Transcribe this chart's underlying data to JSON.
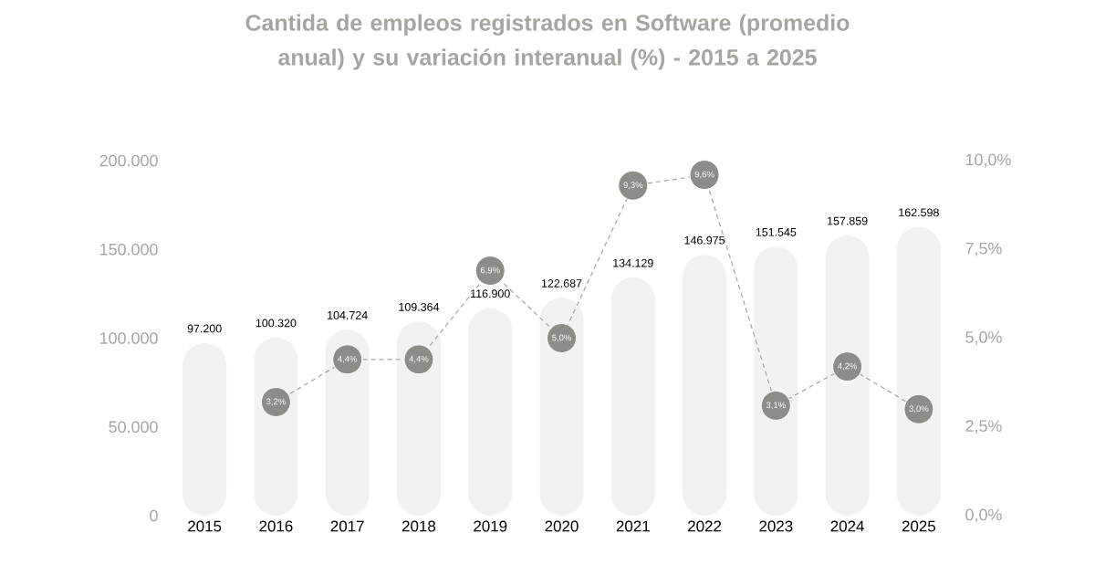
{
  "chart_data": {
    "type": "bar",
    "title": "Cantida de empleos registrados en Software (promedio anual) y su variación interanual (%) - 2015 a 2025",
    "categories": [
      "2015",
      "2016",
      "2017",
      "2018",
      "2019",
      "2020",
      "2021",
      "2022",
      "2023",
      "2024",
      "2025"
    ],
    "series": [
      {
        "color": "#f2f2f2",
        "values": [
          97200,
          100320,
          104724,
          109364,
          116900,
          122687,
          134129,
          146975,
          151545,
          157859,
          162598
        ],
        "value_labels": [
          "97.200",
          "100.320",
          "104.724",
          "109.364",
          "116.900",
          "122.687",
          "134.129",
          "146.975",
          "151.545",
          "157.859",
          "162.598"
        ]
      },
      {
        "type": "line",
        "axis": "y2",
        "color": "#8e8c88",
        "values": [
          null,
          3.2,
          4.4,
          4.4,
          6.9,
          5.0,
          9.3,
          9.6,
          3.1,
          4.2,
          3.0
        ],
        "value_labels": [
          null,
          "3,2%",
          "4,4%",
          "4,4%",
          "6,9%",
          "5,0%",
          "9,3%",
          "9,6%",
          "3,1%",
          "4,2%",
          "3,0%"
        ]
      }
    ],
    "marker": "circle",
    "line_style": "dashed",
    "ylim": [
      0,
      200000
    ],
    "yticks": [
      {
        "value": 0,
        "label": "0"
      },
      {
        "value": 50000,
        "label": "50.000"
      },
      {
        "value": 100000,
        "label": "100.000"
      },
      {
        "value": 150000,
        "label": "150.000"
      },
      {
        "value": 200000,
        "label": "200.000"
      }
    ],
    "y2lim": [
      0,
      10
    ],
    "y2ticks": [
      {
        "value": 0,
        "label": "0,0%"
      },
      {
        "value": 2.5,
        "label": "2,5%"
      },
      {
        "value": 5,
        "label": "5,0%"
      },
      {
        "value": 7.5,
        "label": "7,5%"
      },
      {
        "value": 10,
        "label": "10,0%"
      }
    ]
  }
}
